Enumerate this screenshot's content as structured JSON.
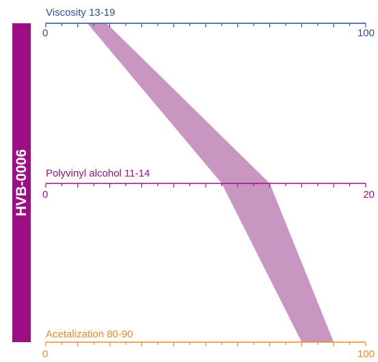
{
  "product": {
    "name": "HVB-0006",
    "color": "#9b0e84"
  },
  "band_color": "#c996c2",
  "axes": [
    {
      "key": "viscosity",
      "title": "Viscosity 13-19",
      "min": 0,
      "max": 100,
      "min_label": "0",
      "max_label": "100",
      "range": [
        13,
        19
      ],
      "color": "#2b4e9d",
      "ticks": 20
    },
    {
      "key": "pva",
      "title": "Polyvinyl alcohol 11-14",
      "min": 0,
      "max": 20,
      "min_label": "0",
      "max_label": "20",
      "range": [
        11,
        14
      ],
      "color": "#9b0e84",
      "ticks": 20
    },
    {
      "key": "acetalization",
      "title": "Acetalization 80-90",
      "min": 0,
      "max": 100,
      "min_label": "0",
      "max_label": "100",
      "range": [
        80,
        90
      ],
      "color": "#ee8a23",
      "ticks": 20
    }
  ]
}
